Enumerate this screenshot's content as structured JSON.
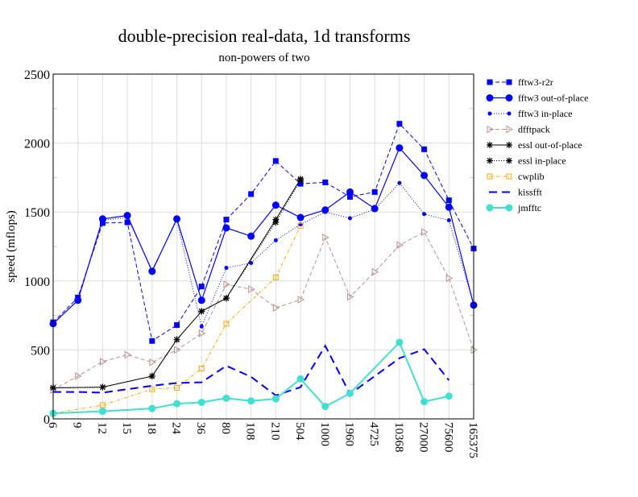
{
  "chart_data": {
    "type": "line",
    "title": "double-precision real-data, 1d transforms",
    "subtitle": "non-powers of two",
    "xlabel": "",
    "ylabel": "speed (mflops)",
    "ylim": [
      0,
      2500
    ],
    "yticks": [
      "0",
      "500",
      "1000",
      "1500",
      "2000",
      "2500"
    ],
    "grid": true,
    "legend_position": "right",
    "categories": [
      "6",
      "9",
      "12",
      "15",
      "18",
      "24",
      "36",
      "80",
      "108",
      "210",
      "504",
      "1000",
      "1960",
      "4725",
      "10368",
      "27000",
      "75600",
      "165375"
    ],
    "series": [
      {
        "name": "fftw3-r2r",
        "color": "#0000ff",
        "dash": "5,3",
        "marker": "square",
        "width": 1,
        "values": [
          700,
          880,
          1420,
          1425,
          565,
          680,
          960,
          1445,
          1630,
          1870,
          1705,
          1715,
          1610,
          1645,
          2140,
          1955,
          1585,
          1235
        ]
      },
      {
        "name": "fftw3 out-of-place",
        "color": "#0000ff",
        "dash": "",
        "marker": "circle",
        "width": 1.2,
        "values": [
          690,
          860,
          1450,
          1475,
          1070,
          1450,
          860,
          1385,
          1325,
          1550,
          1460,
          1515,
          1645,
          1525,
          1965,
          1765,
          1535,
          825
        ]
      },
      {
        "name": "fftw3 in-place",
        "color": "#0000ff",
        "dash": "1,2",
        "marker": "dot",
        "width": 1,
        "values": [
          690,
          860,
          1440,
          1460,
          1080,
          1440,
          670,
          1095,
          1130,
          1295,
          1410,
          1500,
          1455,
          1520,
          1710,
          1485,
          1440,
          830
        ]
      },
      {
        "name": "dfftpack",
        "color": "#bc8f8f",
        "dash": "5,3",
        "marker": "triangle",
        "width": 1,
        "values": [
          210,
          310,
          415,
          465,
          410,
          500,
          620,
          975,
          940,
          805,
          865,
          1315,
          885,
          1065,
          1260,
          1355,
          1020,
          500
        ]
      },
      {
        "name": "essl out-of-place",
        "color": "#000000",
        "dash": "",
        "marker": "star",
        "width": 1,
        "values": [
          225,
          null,
          230,
          null,
          310,
          575,
          780,
          875,
          null,
          1445,
          1740,
          null,
          null,
          null,
          null,
          null,
          null,
          null
        ]
      },
      {
        "name": "essl in-place",
        "color": "#000000",
        "dash": "1,2",
        "marker": "star",
        "width": 1,
        "values": [
          225,
          null,
          230,
          null,
          310,
          575,
          780,
          875,
          null,
          1425,
          1730,
          null,
          null,
          null,
          null,
          null,
          null,
          null
        ]
      },
      {
        "name": "cwplib",
        "color": "#ffa500",
        "dash": "4,2,1,2",
        "marker": "opensquare",
        "width": 1,
        "values": [
          40,
          null,
          100,
          null,
          215,
          225,
          365,
          690,
          null,
          1025,
          1400,
          null,
          null,
          null,
          null,
          null,
          null,
          null
        ]
      },
      {
        "name": "kissfft",
        "color": "#0000ff",
        "dash": "10,6",
        "marker": "none",
        "width": 2,
        "values": [
          195,
          195,
          190,
          null,
          240,
          260,
          265,
          385,
          305,
          170,
          230,
          530,
          180,
          310,
          440,
          505,
          280,
          null
        ]
      },
      {
        "name": "jmfftc",
        "color": "#40e0d0",
        "dash": "",
        "marker": "circle",
        "width": 2,
        "values": [
          40,
          null,
          55,
          null,
          75,
          110,
          120,
          150,
          130,
          145,
          290,
          90,
          185,
          null,
          555,
          125,
          165,
          null
        ]
      }
    ]
  }
}
